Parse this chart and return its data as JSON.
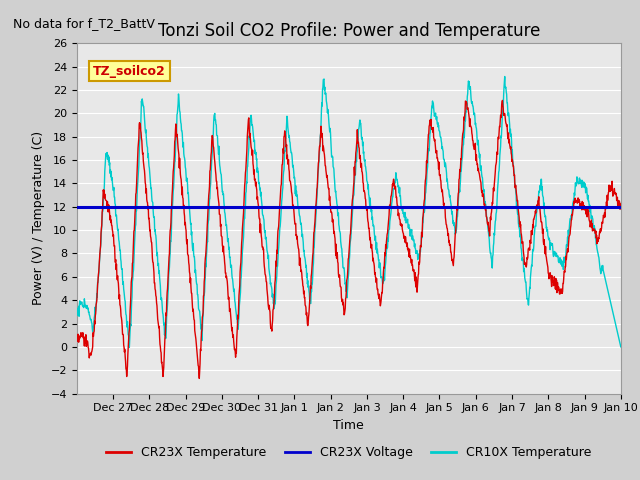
{
  "title": "Tonzi Soil CO2 Profile: Power and Temperature",
  "subtitle": "No data for f_T2_BattV",
  "ylabel": "Power (V) / Temperature (C)",
  "xlabel": "Time",
  "ylim": [
    -4,
    26
  ],
  "yticks": [
    -4,
    -2,
    0,
    2,
    4,
    6,
    8,
    10,
    12,
    14,
    16,
    18,
    20,
    22,
    24,
    26
  ],
  "xtick_labels": [
    "Dec 27",
    "Dec 28",
    "Dec 29",
    "Dec 30",
    "Dec 31",
    "Jan 1",
    "Jan 2",
    "Jan 3",
    "Jan 4",
    "Jan 5",
    "Jan 6",
    "Jan 7",
    "Jan 8",
    "Jan 9",
    "Jan 10"
  ],
  "voltage_value": 12.0,
  "legend_box_label": "TZ_soilco2",
  "legend_box_color": "#ffff99",
  "legend_box_border": "#cc9900",
  "legend_box_text_color": "#cc0000",
  "cr23x_color": "#dd0000",
  "cr10x_color": "#00cccc",
  "voltage_color": "#0000cc",
  "plot_bg_color": "#e8e8e8",
  "fig_bg_color": "#d0d0d0",
  "grid_color": "#ffffff",
  "title_fontsize": 12,
  "subtitle_fontsize": 9,
  "axis_fontsize": 9,
  "tick_fontsize": 8,
  "legend_fontsize": 9
}
